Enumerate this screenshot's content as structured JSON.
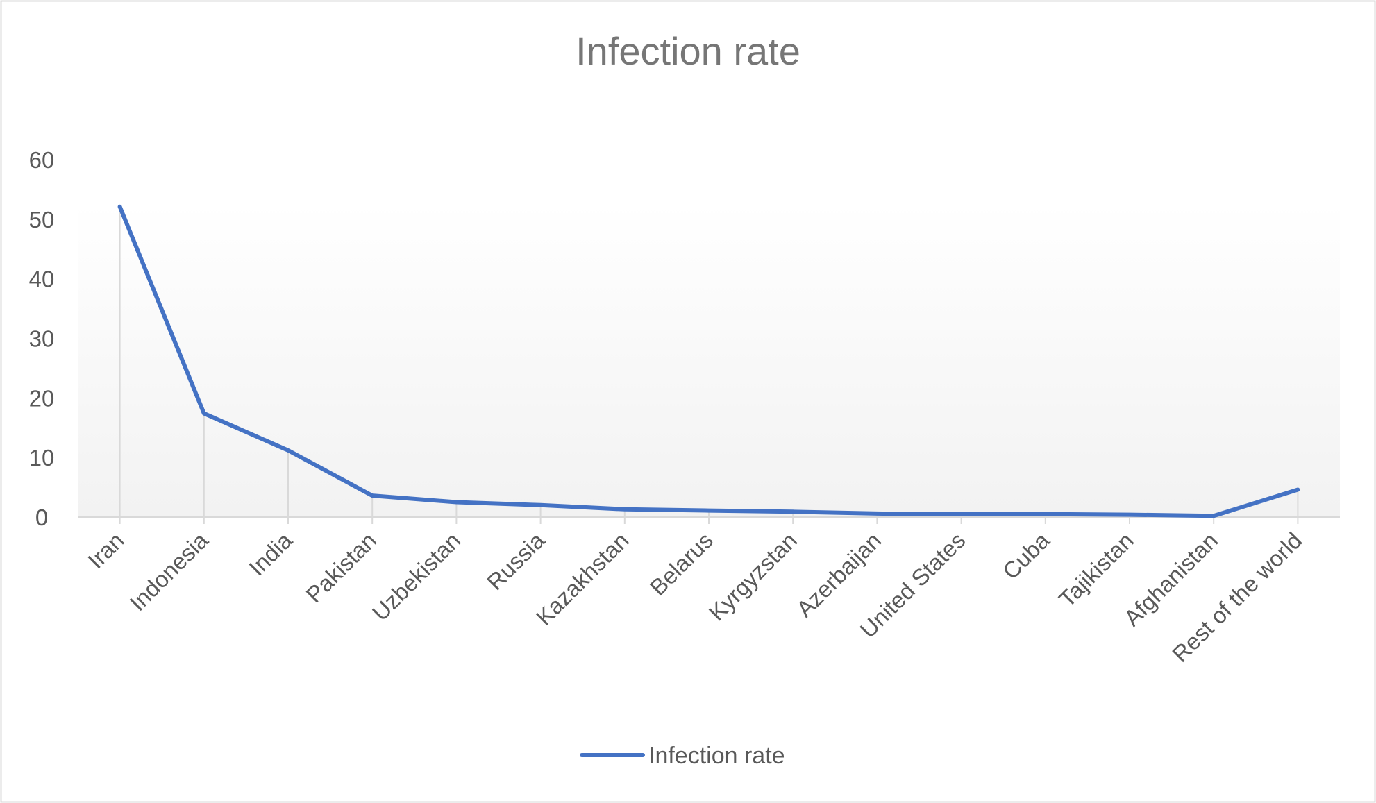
{
  "chart_data": {
    "type": "line",
    "title": "Infection rate",
    "xlabel": "",
    "ylabel": "",
    "categories": [
      "Iran",
      "Indonesia",
      "India",
      "Pakistan",
      "Uzbekistan",
      "Russia",
      "Kazakhstan",
      "Belarus",
      "Kyrgyzstan",
      "Azerbaijan",
      "United States",
      "Cuba",
      "Tajikistan",
      "Afghanistan",
      "Rest of the world"
    ],
    "series": [
      {
        "name": "Infection rate",
        "color": "#4472C4",
        "values": [
          52.1,
          17.4,
          11.2,
          3.6,
          2.5,
          2.0,
          1.3,
          1.1,
          0.9,
          0.6,
          0.5,
          0.5,
          0.4,
          0.2,
          4.6
        ]
      }
    ],
    "ylim": [
      0,
      60
    ],
    "yticks": [
      0,
      10,
      20,
      30,
      40,
      50,
      60
    ],
    "grid": false,
    "legend": "bottom",
    "colors": {
      "plot_gradient_top": "#ffffff",
      "plot_gradient_bottom": "#f2f2f2",
      "drop_line": "#d9d9d9",
      "axis": "#d9d9d9",
      "border": "#d9d9d9"
    }
  }
}
